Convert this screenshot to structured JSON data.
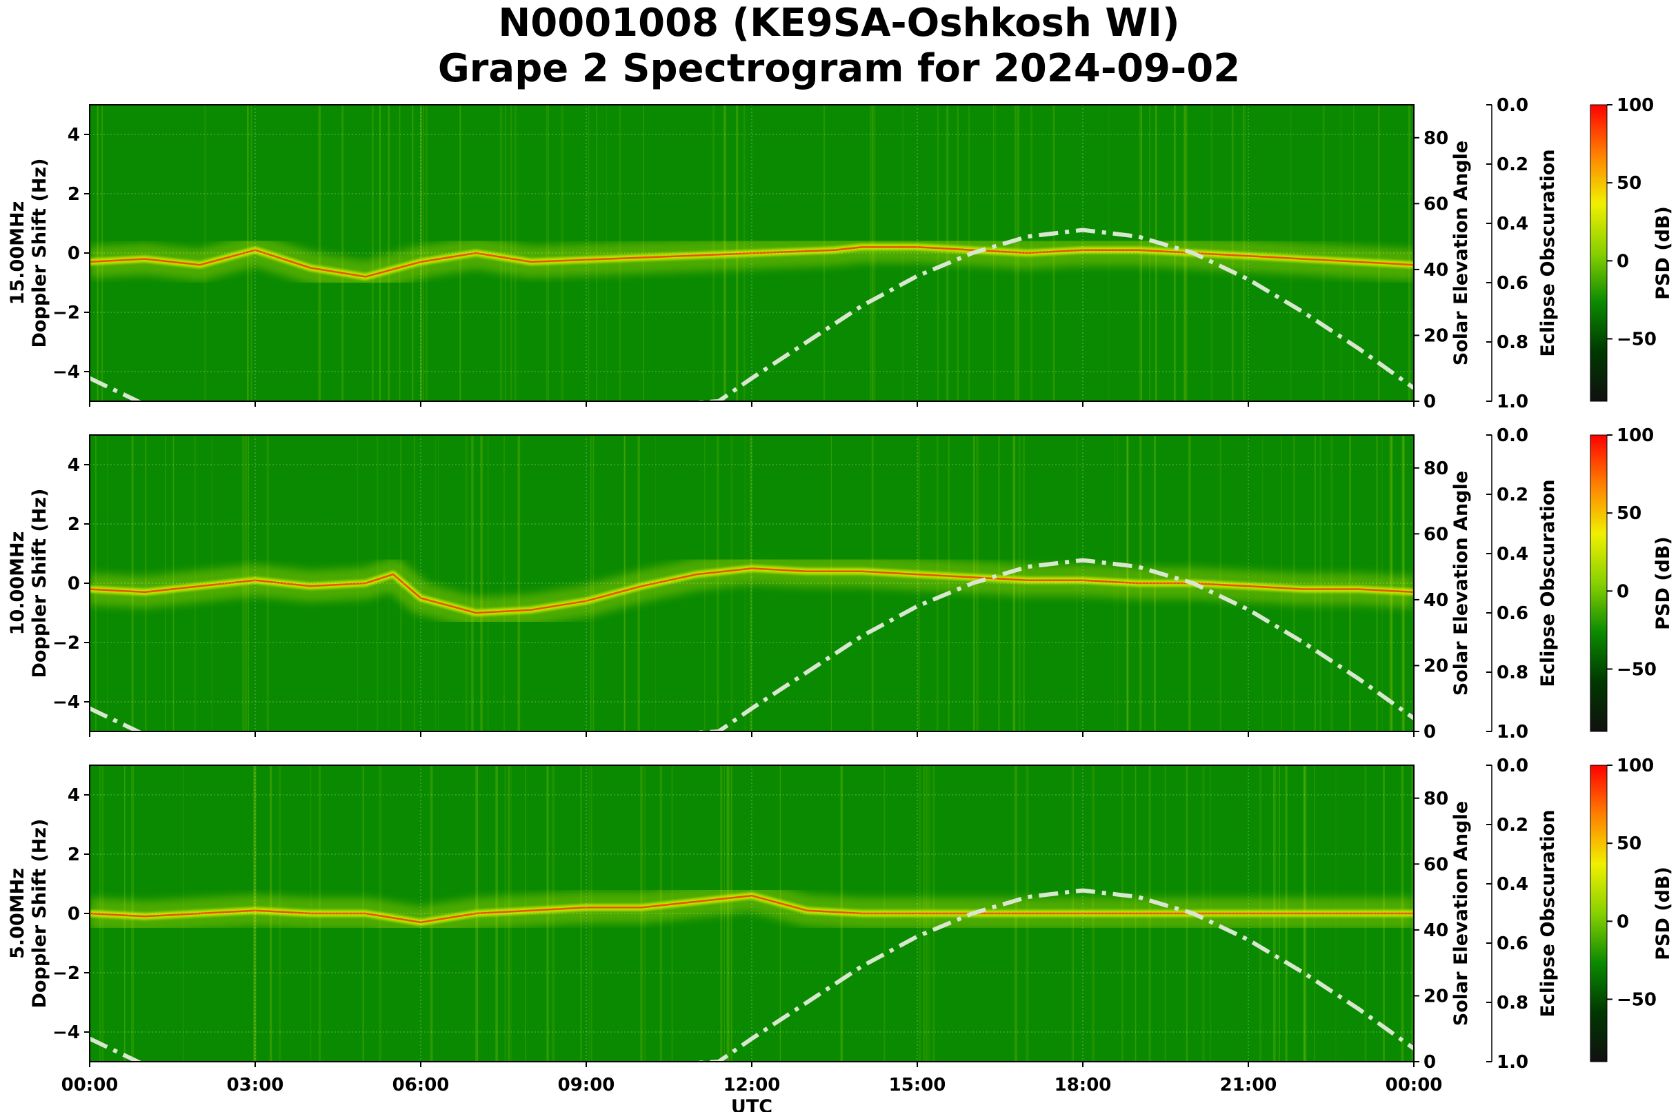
{
  "title_line1": "N0001008 (KE9SA-Oshkosh WI)",
  "title_line2": "Grape 2 Spectrogram for 2024-09-02",
  "chart_data": [
    {
      "type": "heatmap",
      "panel_label": "15.00MHz",
      "ylabel": "Doppler Shift (Hz)",
      "xlabel": "",
      "xlim": [
        "00:00",
        "24:00"
      ],
      "ylim": [
        -5,
        5
      ],
      "yticks": [
        -4,
        -2,
        0,
        2,
        4
      ],
      "secondary_axis": {
        "label": "Solar Elevation Angle",
        "ylim": [
          0,
          90
        ],
        "ticks": [
          0,
          20,
          40,
          60,
          80
        ]
      },
      "eclipse_axis": {
        "label": "Eclipse Obscuration",
        "ylim": [
          1.0,
          0.0
        ],
        "ticks": [
          "0.0",
          "0.2",
          "0.4",
          "0.6",
          "0.8",
          "1.0"
        ]
      },
      "colorbar": {
        "label": "PSD (dB)",
        "range": [
          -90,
          100
        ],
        "ticks": [
          100,
          50,
          0,
          -50
        ]
      },
      "solar_elevation": {
        "hours": [
          0,
          1,
          2,
          11.4,
          12,
          13,
          14,
          15,
          16,
          17,
          18,
          19,
          20,
          21,
          22,
          23,
          24
        ],
        "values": [
          7,
          -1,
          -9,
          0,
          7,
          18,
          29,
          38,
          45,
          50,
          52,
          50,
          45,
          37,
          27,
          16,
          4
        ]
      },
      "carrier_trace": {
        "hours": [
          0,
          1,
          2,
          3,
          4,
          5,
          6,
          7,
          8,
          13.5,
          14,
          15,
          16,
          17,
          18,
          19,
          20,
          21,
          22,
          23,
          24
        ],
        "doppler": [
          -0.3,
          -0.2,
          -0.4,
          0.1,
          -0.5,
          -0.8,
          -0.3,
          0.0,
          -0.3,
          0.1,
          0.2,
          0.2,
          0.1,
          0.0,
          0.1,
          0.1,
          0.0,
          -0.1,
          -0.2,
          -0.3,
          -0.4
        ]
      }
    },
    {
      "type": "heatmap",
      "panel_label": "10.00MHz",
      "ylabel": "Doppler Shift (Hz)",
      "xlabel": "",
      "xlim": [
        "00:00",
        "24:00"
      ],
      "ylim": [
        -5,
        5
      ],
      "yticks": [
        -4,
        -2,
        0,
        2,
        4
      ],
      "secondary_axis": {
        "label": "Solar Elevation Angle",
        "ylim": [
          0,
          90
        ],
        "ticks": [
          0,
          20,
          40,
          60,
          80
        ]
      },
      "eclipse_axis": {
        "label": "Eclipse Obscuration",
        "ylim": [
          1.0,
          0.0
        ],
        "ticks": [
          "0.0",
          "0.2",
          "0.4",
          "0.6",
          "0.8",
          "1.0"
        ]
      },
      "colorbar": {
        "label": "PSD (dB)",
        "range": [
          -90,
          100
        ],
        "ticks": [
          100,
          50,
          0,
          -50
        ]
      },
      "solar_elevation": {
        "hours": [
          0,
          1,
          2,
          11.4,
          12,
          13,
          14,
          15,
          16,
          17,
          18,
          19,
          20,
          21,
          22,
          23,
          24
        ],
        "values": [
          7,
          -1,
          -9,
          0,
          7,
          18,
          29,
          38,
          45,
          50,
          52,
          50,
          45,
          37,
          27,
          16,
          4
        ]
      },
      "carrier_trace": {
        "hours": [
          0,
          1,
          2,
          3,
          4,
          5,
          5.5,
          6,
          7,
          8,
          9,
          10,
          11,
          12,
          13,
          14,
          15,
          16,
          17,
          18,
          19,
          20,
          21,
          22,
          23,
          24
        ],
        "doppler": [
          -0.2,
          -0.3,
          -0.1,
          0.1,
          -0.1,
          0.0,
          0.3,
          -0.5,
          -1.0,
          -0.9,
          -0.6,
          -0.1,
          0.3,
          0.5,
          0.4,
          0.4,
          0.3,
          0.2,
          0.1,
          0.1,
          0.0,
          0.0,
          -0.1,
          -0.2,
          -0.2,
          -0.3
        ]
      }
    },
    {
      "type": "heatmap",
      "panel_label": "5.00MHz",
      "ylabel": "Doppler Shift (Hz)",
      "xlabel": "UTC",
      "xlim": [
        "00:00",
        "24:00"
      ],
      "xticks": [
        "00:00",
        "03:00",
        "06:00",
        "09:00",
        "12:00",
        "15:00",
        "18:00",
        "21:00",
        "00:00"
      ],
      "ylim": [
        -5,
        5
      ],
      "yticks": [
        -4,
        -2,
        0,
        2,
        4
      ],
      "secondary_axis": {
        "label": "Solar Elevation Angle",
        "ylim": [
          0,
          90
        ],
        "ticks": [
          0,
          20,
          40,
          60,
          80
        ]
      },
      "eclipse_axis": {
        "label": "Eclipse Obscuration",
        "ylim": [
          1.0,
          0.0
        ],
        "ticks": [
          "0.0",
          "0.2",
          "0.4",
          "0.6",
          "0.8",
          "1.0"
        ]
      },
      "colorbar": {
        "label": "PSD (dB)",
        "range": [
          -90,
          100
        ],
        "ticks": [
          100,
          50,
          0,
          -50
        ]
      },
      "solar_elevation": {
        "hours": [
          0,
          1,
          2,
          11.4,
          12,
          13,
          14,
          15,
          16,
          17,
          18,
          19,
          20,
          21,
          22,
          23,
          24
        ],
        "values": [
          7,
          -1,
          -9,
          0,
          7,
          18,
          29,
          38,
          45,
          50,
          52,
          50,
          45,
          37,
          27,
          16,
          4
        ]
      },
      "carrier_trace": {
        "hours": [
          0,
          1,
          2,
          3,
          4,
          5,
          6,
          7,
          8,
          9,
          10,
          11,
          12,
          13,
          14,
          15,
          18,
          21,
          24
        ],
        "doppler": [
          0.0,
          -0.1,
          0.0,
          0.1,
          0.0,
          0.0,
          -0.3,
          0.0,
          0.1,
          0.2,
          0.2,
          0.4,
          0.6,
          0.1,
          0.0,
          0.0,
          0.0,
          0.0,
          0.0
        ]
      }
    }
  ],
  "colors": {
    "background_green": "#0a8a00",
    "signal_yellow": "#d8f000",
    "signal_red": "#ff2000",
    "solar_curve": "#d8e8d0",
    "colormap": [
      "#101010",
      "#003800",
      "#0a8a00",
      "#88d000",
      "#f0f000",
      "#ff8000",
      "#ff0000"
    ]
  }
}
